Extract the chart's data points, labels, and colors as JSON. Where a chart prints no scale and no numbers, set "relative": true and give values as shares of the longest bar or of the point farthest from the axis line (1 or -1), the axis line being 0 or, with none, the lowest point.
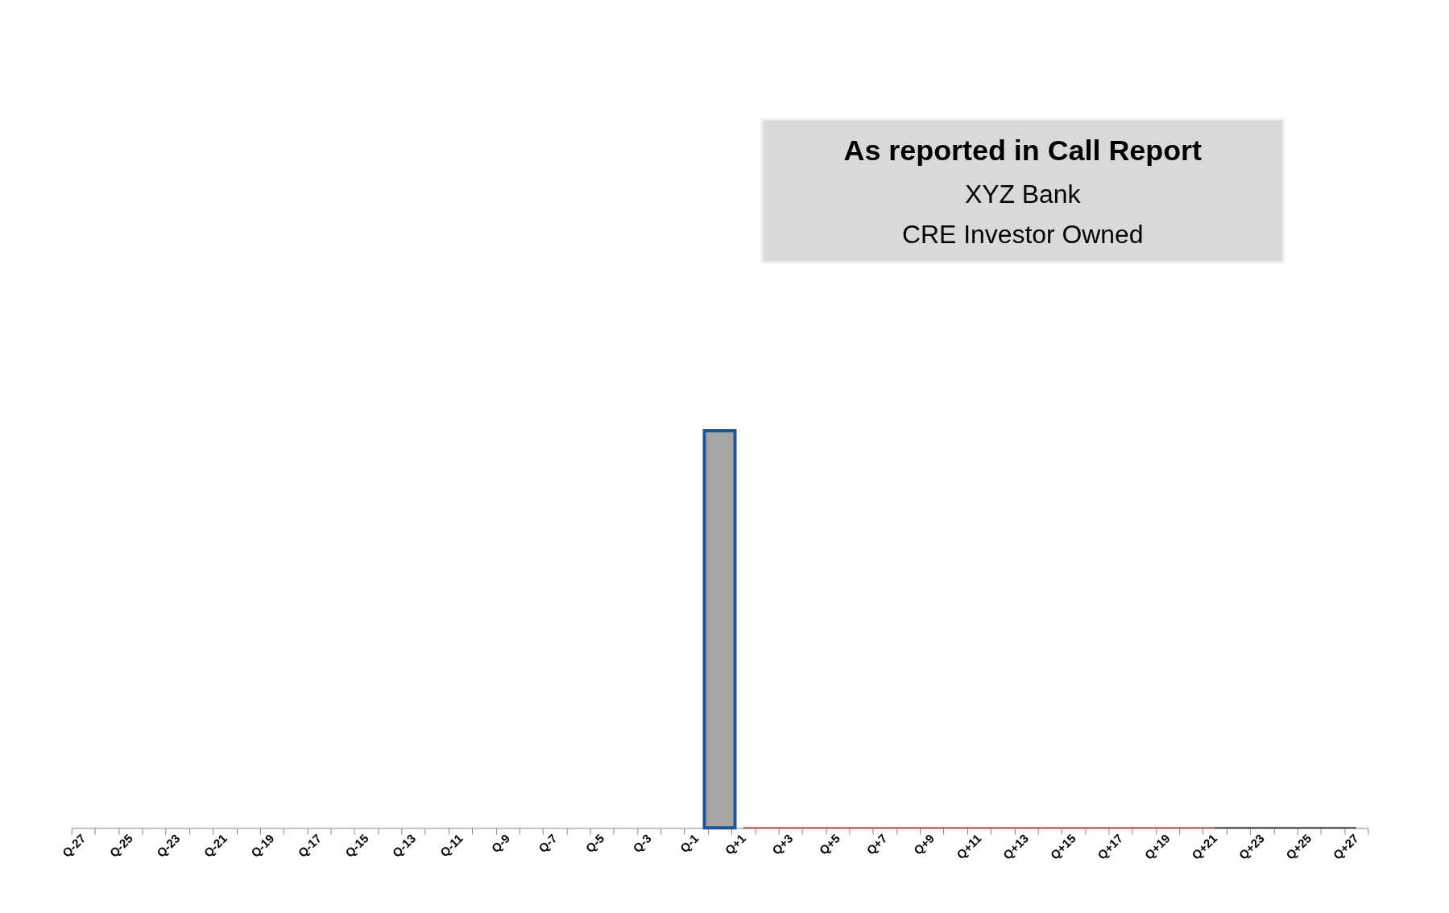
{
  "chart_data": {
    "type": "bar",
    "title": "As reported in Call Report",
    "annotations": [
      "XYZ Bank",
      "CRE Investor Owned"
    ],
    "categories": [
      "Q-27",
      null,
      "Q-25",
      null,
      "Q-23",
      null,
      "Q-21",
      null,
      "Q-19",
      null,
      "Q-17",
      null,
      "Q-15",
      null,
      "Q-13",
      null,
      "Q-11",
      null,
      "Q-9",
      null,
      "Q-7",
      null,
      "Q-5",
      null,
      "Q-3",
      null,
      "Q-1",
      null,
      "Q+1",
      null,
      "Q+3",
      null,
      "Q+5",
      null,
      "Q+7",
      null,
      "Q+9",
      null,
      "Q+11",
      null,
      "Q+13",
      null,
      "Q+15",
      null,
      "Q+17",
      null,
      "Q+19",
      null,
      "Q+21",
      null,
      "Q+23",
      null,
      "Q+25",
      null,
      "Q+27"
    ],
    "relative": true,
    "grid": false,
    "series": [
      {
        "color": "#a5a5a5",
        "values": [
          null,
          null,
          null,
          null,
          null,
          null,
          null,
          null,
          null,
          null,
          null,
          null,
          null,
          null,
          null,
          null,
          null,
          null,
          null,
          null,
          null,
          null,
          null,
          null,
          null,
          null,
          null,
          1,
          null,
          null,
          null,
          null,
          null,
          null,
          null,
          null,
          null,
          null,
          null,
          null,
          null,
          null,
          null,
          null,
          null,
          null,
          null,
          null,
          null,
          null,
          null,
          null,
          null,
          null,
          null
        ]
      },
      {
        "type": "line",
        "color": "#c0504d",
        "values": [
          null,
          null,
          null,
          null,
          null,
          null,
          null,
          null,
          null,
          null,
          null,
          null,
          null,
          null,
          null,
          null,
          null,
          null,
          null,
          null,
          null,
          null,
          null,
          null,
          null,
          null,
          null,
          null,
          0,
          0,
          0,
          0,
          0,
          0,
          0,
          0,
          0,
          0,
          0,
          0,
          0,
          0,
          0,
          0,
          0,
          0,
          0,
          0,
          0,
          null,
          null,
          null,
          null,
          null,
          null
        ]
      },
      {
        "type": "line",
        "color": "#404040",
        "values": [
          null,
          null,
          null,
          null,
          null,
          null,
          null,
          null,
          null,
          null,
          null,
          null,
          null,
          null,
          null,
          null,
          null,
          null,
          null,
          null,
          null,
          null,
          null,
          null,
          null,
          null,
          null,
          null,
          null,
          null,
          null,
          null,
          null,
          null,
          null,
          null,
          null,
          null,
          null,
          null,
          null,
          null,
          null,
          null,
          null,
          null,
          null,
          null,
          0,
          0,
          0,
          0,
          0,
          0,
          0
        ]
      }
    ]
  }
}
